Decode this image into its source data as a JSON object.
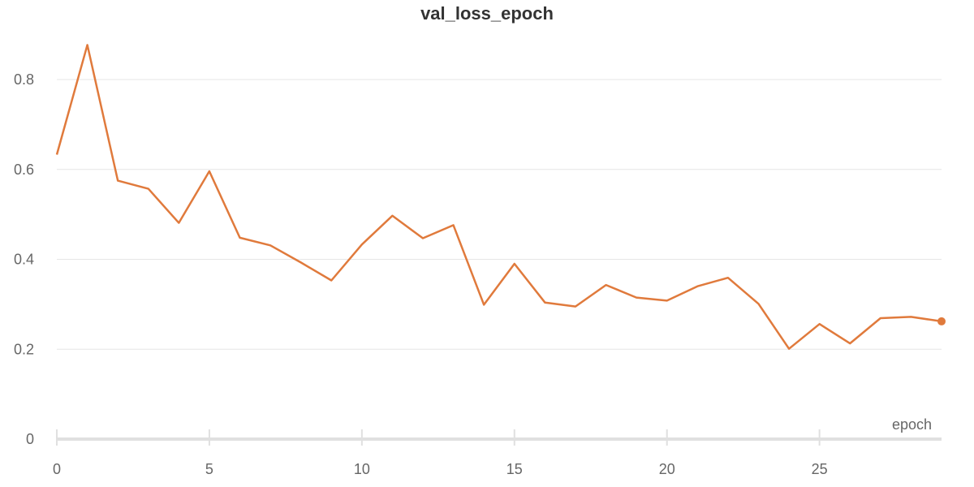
{
  "chart_data": {
    "type": "line",
    "title": "val_loss_epoch",
    "xlabel": "epoch",
    "ylabel": "",
    "xlim": [
      0,
      29
    ],
    "ylim": [
      0,
      0.9
    ],
    "x_ticks": [
      0,
      5,
      10,
      15,
      20,
      25
    ],
    "y_ticks": [
      0,
      0.2,
      0.4,
      0.6,
      0.8
    ],
    "y_tick_labels": [
      "0",
      "0.2",
      "0.4",
      "0.6",
      "0.8"
    ],
    "grid": true,
    "legend": "none",
    "series": [
      {
        "color": "#e07a3c",
        "x": [
          0,
          1,
          2,
          3,
          4,
          5,
          6,
          7,
          8,
          9,
          10,
          11,
          12,
          13,
          14,
          15,
          16,
          17,
          18,
          19,
          20,
          21,
          22,
          23,
          24,
          25,
          26,
          27,
          28,
          29
        ],
        "values": [
          0.633,
          0.877,
          0.575,
          0.557,
          0.481,
          0.596,
          0.448,
          0.431,
          0.393,
          0.353,
          0.433,
          0.497,
          0.447,
          0.476,
          0.299,
          0.39,
          0.304,
          0.295,
          0.343,
          0.315,
          0.308,
          0.34,
          0.359,
          0.301,
          0.201,
          0.256,
          0.213,
          0.269,
          0.272,
          0.262
        ]
      }
    ]
  }
}
